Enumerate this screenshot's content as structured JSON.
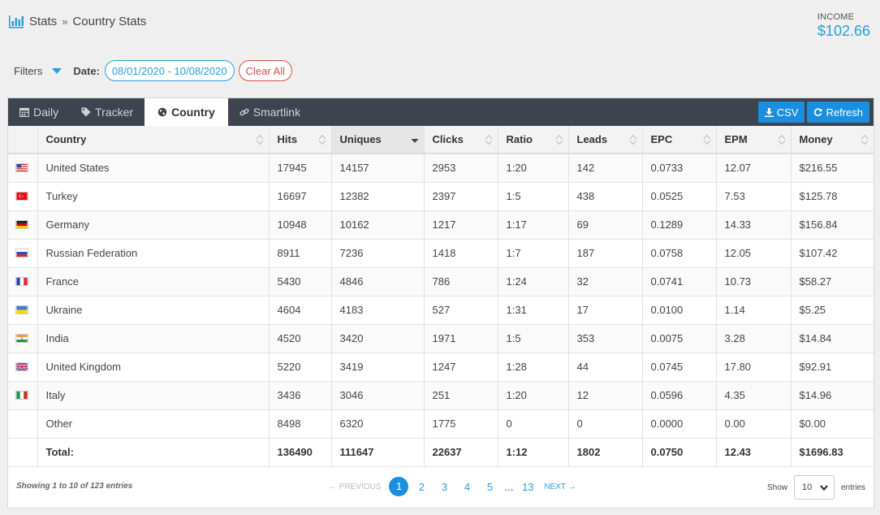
{
  "breadcrumb": {
    "root": "Stats",
    "sep": "»",
    "current": "Country Stats"
  },
  "income": {
    "label": "INCOME",
    "value": "$102.66"
  },
  "filters": {
    "label": "Filters",
    "date_label": "Date:",
    "date_value": "08/01/2020 - 10/08/2020",
    "clear_label": "Clear All"
  },
  "tabs": [
    {
      "label": "Daily",
      "icon": "calendar-icon",
      "active": false
    },
    {
      "label": "Tracker",
      "icon": "tag-icon",
      "active": false
    },
    {
      "label": "Country",
      "icon": "globe-icon",
      "active": true
    },
    {
      "label": "Smartlink",
      "icon": "link-icon",
      "active": false
    }
  ],
  "actions": {
    "csv": "CSV",
    "refresh": "Refresh"
  },
  "table": {
    "headers": [
      "Country",
      "Hits",
      "Uniques",
      "Clicks",
      "Ratio",
      "Leads",
      "EPC",
      "EPM",
      "Money"
    ],
    "sorted_column": "Uniques",
    "rows": [
      {
        "flag": "us",
        "country": "United States",
        "hits": "17945",
        "uniques": "14157",
        "clicks": "2953",
        "ratio": "1:20",
        "leads": "142",
        "epc": "0.0733",
        "epm": "12.07",
        "money": "$216.55"
      },
      {
        "flag": "tr",
        "country": "Turkey",
        "hits": "16697",
        "uniques": "12382",
        "clicks": "2397",
        "ratio": "1:5",
        "leads": "438",
        "epc": "0.0525",
        "epm": "7.53",
        "money": "$125.78"
      },
      {
        "flag": "de",
        "country": "Germany",
        "hits": "10948",
        "uniques": "10162",
        "clicks": "1217",
        "ratio": "1:17",
        "leads": "69",
        "epc": "0.1289",
        "epm": "14.33",
        "money": "$156.84"
      },
      {
        "flag": "ru",
        "country": "Russian Federation",
        "hits": "8911",
        "uniques": "7236",
        "clicks": "1418",
        "ratio": "1:7",
        "leads": "187",
        "epc": "0.0758",
        "epm": "12.05",
        "money": "$107.42"
      },
      {
        "flag": "fr",
        "country": "France",
        "hits": "5430",
        "uniques": "4846",
        "clicks": "786",
        "ratio": "1:24",
        "leads": "32",
        "epc": "0.0741",
        "epm": "10.73",
        "money": "$58.27"
      },
      {
        "flag": "ua",
        "country": "Ukraine",
        "hits": "4604",
        "uniques": "4183",
        "clicks": "527",
        "ratio": "1:31",
        "leads": "17",
        "epc": "0.0100",
        "epm": "1.14",
        "money": "$5.25"
      },
      {
        "flag": "in",
        "country": "India",
        "hits": "4520",
        "uniques": "3420",
        "clicks": "1971",
        "ratio": "1:5",
        "leads": "353",
        "epc": "0.0075",
        "epm": "3.28",
        "money": "$14.84"
      },
      {
        "flag": "gb",
        "country": "United Kingdom",
        "hits": "5220",
        "uniques": "3419",
        "clicks": "1247",
        "ratio": "1:28",
        "leads": "44",
        "epc": "0.0745",
        "epm": "17.80",
        "money": "$92.91"
      },
      {
        "flag": "it",
        "country": "Italy",
        "hits": "3436",
        "uniques": "3046",
        "clicks": "251",
        "ratio": "1:20",
        "leads": "12",
        "epc": "0.0596",
        "epm": "4.35",
        "money": "$14.96"
      },
      {
        "flag": "",
        "country": "Other",
        "hits": "8498",
        "uniques": "6320",
        "clicks": "1775",
        "ratio": "0",
        "leads": "0",
        "epc": "0.0000",
        "epm": "0.00",
        "money": "$0.00"
      }
    ],
    "total": {
      "label": "Total:",
      "hits": "136490",
      "uniques": "111647",
      "clicks": "22637",
      "ratio": "1:12",
      "leads": "1802",
      "epc": "0.0750",
      "epm": "12.43",
      "money": "$1696.83"
    }
  },
  "footer": {
    "showing": "Showing 1 to 10 of 123 entries",
    "prev": "← PREVIOUS",
    "pages": [
      "1",
      "2",
      "3",
      "4",
      "5"
    ],
    "dots": "...",
    "last_page": "13",
    "next": "NEXT →",
    "show_label": "Show",
    "page_size": "10",
    "entries_label": "entries"
  },
  "colors": {
    "accent": "#1a8fe0",
    "link": "#2a9fd8",
    "danger": "#e04a4a",
    "tabbar": "#3d4450"
  }
}
